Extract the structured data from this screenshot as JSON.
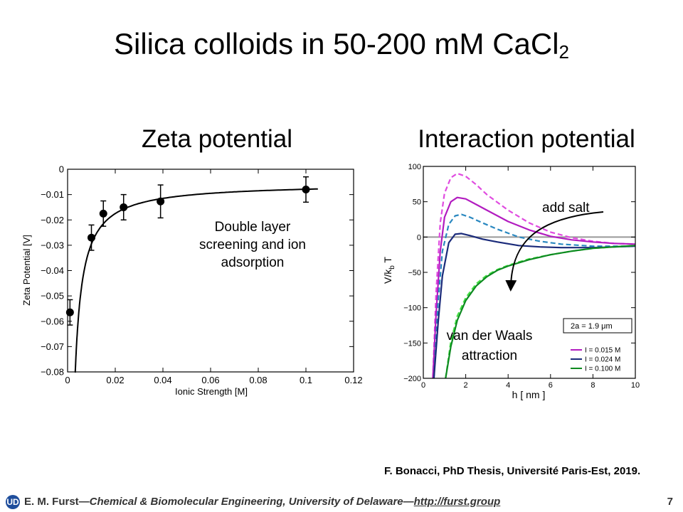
{
  "slide": {
    "title_main": "Silica colloids in 50-200 mM CaCl",
    "title_sub": "2",
    "citation": "F. Bonacci, PhD Thesis, Université Paris-Est, 2019.",
    "footer": {
      "logo": "UD",
      "author": "E. M. Furst",
      "dash1": "—",
      "affiliation": "Chemical & Biomolecular Engineering, University of Delaware",
      "dash2": "—",
      "url": "http://furst.group",
      "page_number": "7"
    }
  },
  "chart_data": [
    {
      "type": "scatter",
      "heading": "Zeta potential",
      "xlabel": "Ionic Strength [M]",
      "ylabel": "Zeta Potential [V]",
      "xlim": [
        0,
        0.12
      ],
      "ylim": [
        -0.08,
        0
      ],
      "xticks": [
        0,
        0.02,
        0.04,
        0.06,
        0.08,
        0.1,
        0.12
      ],
      "xtick_labels": [
        "0",
        "0.02",
        "0.04",
        "0.06",
        "0.08",
        "0.1",
        "0.12"
      ],
      "yticks": [
        0,
        -0.01,
        -0.02,
        -0.03,
        -0.04,
        -0.05,
        -0.06,
        -0.07,
        -0.08
      ],
      "ytick_labels": [
        "0",
        "−0.01",
        "−0.02",
        "−0.03",
        "−0.04",
        "−0.05",
        "−0.06",
        "−0.07",
        "−0.08"
      ],
      "points": [
        {
          "x": 0.001,
          "y": -0.0565,
          "err": 0.005
        },
        {
          "x": 0.01,
          "y": -0.027,
          "err": 0.005
        },
        {
          "x": 0.015,
          "y": -0.0175,
          "err": 0.005
        },
        {
          "x": 0.0235,
          "y": -0.015,
          "err": 0.005
        },
        {
          "x": 0.039,
          "y": -0.0127,
          "err": 0.0065
        },
        {
          "x": 0.1,
          "y": -0.008,
          "err": 0.005
        }
      ],
      "fit_curve": {
        "description": "zeta fit",
        "model": "a + b/x",
        "a": -0.0055,
        "b": -0.00024,
        "x_range": [
          0.003,
          0.105
        ]
      },
      "annotation": [
        "Double layer",
        "screening and ion",
        "adsorption"
      ]
    },
    {
      "type": "line",
      "heading": "Interaction potential",
      "xlabel": "h [ nm ]",
      "ylabel": "V/k",
      "ylabel_sub": "b",
      "ylabel_suffix": " T",
      "xlim": [
        0,
        10
      ],
      "ylim": [
        -200,
        100
      ],
      "xticks": [
        0,
        2,
        4,
        6,
        8,
        10
      ],
      "xtick_labels": [
        "0",
        "2",
        "4",
        "6",
        "8",
        "10"
      ],
      "yticks": [
        100,
        50,
        0,
        -50,
        -100,
        -150,
        -200
      ],
      "ytick_labels": [
        "100",
        "50",
        "0",
        "−50",
        "−100",
        "−150",
        "−200"
      ],
      "legend_title": "2a = 1.9 μm",
      "legend_position": "bottom-right",
      "series": [
        {
          "name": "I = 0.015 M",
          "color": "#b21cc0",
          "dashed_color": "#e04be0",
          "x": [
            0.45,
            0.6,
            0.8,
            1.0,
            1.3,
            1.6,
            2.0,
            2.5,
            3.0,
            4.0,
            5.0,
            6.0,
            7.0,
            8.0,
            9.0,
            10.0
          ],
          "y": [
            -200,
            -110,
            -20,
            28,
            50,
            56,
            54,
            46,
            38,
            22,
            10,
            1,
            -4,
            -7,
            -9,
            -10
          ],
          "y_dashed": [
            -200,
            -80,
            20,
            62,
            84,
            90,
            86,
            74,
            60,
            38,
            20,
            7,
            -1,
            -6,
            -9,
            -10
          ]
        },
        {
          "name": "I = 0.024 M",
          "color": "#1a2a7a",
          "dashed_color": "#2a88c0",
          "x": [
            0.5,
            0.7,
            0.9,
            1.2,
            1.5,
            1.8,
            2.2,
            2.8,
            3.5,
            4.5,
            5.5,
            6.5,
            8.0,
            10.0
          ],
          "y": [
            -200,
            -120,
            -55,
            -8,
            4,
            5,
            2,
            -3,
            -7,
            -12,
            -14,
            -15,
            -15,
            -13
          ],
          "y_dashed": [
            -200,
            -90,
            -20,
            18,
            30,
            32,
            28,
            20,
            11,
            0,
            -6,
            -10,
            -13,
            -13
          ]
        },
        {
          "name": "I = 0.100 M",
          "color": "#0d8a20",
          "dashed_color": "#44e044",
          "x": [
            1.05,
            1.3,
            1.6,
            2.0,
            2.5,
            3.0,
            3.5,
            4.0,
            5.0,
            6.0,
            7.0,
            8.0,
            9.0,
            10.0
          ],
          "y": [
            -200,
            -155,
            -118,
            -90,
            -69,
            -56,
            -47,
            -41,
            -32,
            -25,
            -20,
            -16,
            -14,
            -12
          ],
          "y_dashed": [
            -200,
            -148,
            -112,
            -86,
            -66,
            -54,
            -46,
            -40,
            -31,
            -25,
            -20,
            -16,
            -14,
            -12
          ]
        }
      ],
      "zero_line_color": "#999999",
      "annotation_salt": "add salt",
      "annotation_vdw": [
        "van der Waals",
        "attraction"
      ]
    }
  ]
}
